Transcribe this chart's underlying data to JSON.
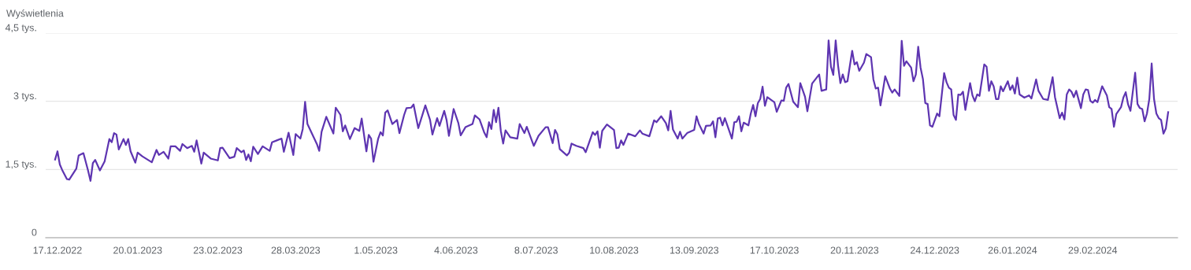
{
  "chart_data": {
    "type": "line",
    "ylabel": "Wyświetlenia",
    "xlim": [
      "2022-12-12",
      "2024-04-05"
    ],
    "ylim": [
      0,
      4.5
    ],
    "xticks": [
      {
        "value": "2022-12-17",
        "label": "17.12.2022"
      },
      {
        "value": "2023-01-20",
        "label": "20.01.2023"
      },
      {
        "value": "2023-02-23",
        "label": "23.02.2023"
      },
      {
        "value": "2023-03-28",
        "label": "28.03.2023"
      },
      {
        "value": "2023-05-01",
        "label": "1.05.2023"
      },
      {
        "value": "2023-06-04",
        "label": "4.06.2023"
      },
      {
        "value": "2023-07-08",
        "label": "8.07.2023"
      },
      {
        "value": "2023-08-10",
        "label": "10.08.2023"
      },
      {
        "value": "2023-09-13",
        "label": "13.09.2023"
      },
      {
        "value": "2023-10-17",
        "label": "17.10.2023"
      },
      {
        "value": "2023-11-20",
        "label": "20.11.2023"
      },
      {
        "value": "2023-12-24",
        "label": "24.12.2023"
      },
      {
        "value": "2024-01-26",
        "label": "26.01.2024"
      },
      {
        "value": "2024-02-29",
        "label": "29.02.2024"
      }
    ],
    "yticks": [
      0,
      {
        "value": 1.5,
        "label": "1,5 tys."
      },
      {
        "value": 3,
        "label": "3 tys."
      },
      {
        "value": 4.5,
        "label": "4,5 tys."
      }
    ],
    "grid": "y",
    "marker": "none",
    "line_style": "solid",
    "series": [
      {
        "color": "#5e35b1",
        "x": [
          "2022-12-16",
          "2022-12-17",
          "2022-12-18",
          "2022-12-19",
          "2022-12-21",
          "2022-12-22",
          "2022-12-25",
          "2022-12-26",
          "2022-12-28",
          "2022-12-30",
          "2022-12-31",
          "2023-01-01",
          "2023-01-02",
          "2023-01-04",
          "2023-01-06",
          "2023-01-08",
          "2023-01-09",
          "2023-01-10",
          "2023-01-11",
          "2023-01-12",
          "2023-01-14",
          "2023-01-15",
          "2023-01-16",
          "2023-01-17",
          "2023-01-19",
          "2023-01-20",
          "2023-01-22",
          "2023-01-26",
          "2023-01-28",
          "2023-01-29",
          "2023-01-31",
          "2023-02-02",
          "2023-02-03",
          "2023-02-05",
          "2023-02-07",
          "2023-02-08",
          "2023-02-10",
          "2023-02-12",
          "2023-02-13",
          "2023-02-14",
          "2023-02-16",
          "2023-02-17",
          "2023-02-20",
          "2023-02-23",
          "2023-02-24",
          "2023-02-25",
          "2023-02-28",
          "2023-03-02",
          "2023-03-03",
          "2023-03-05",
          "2023-03-06",
          "2023-03-07",
          "2023-03-08",
          "2023-03-09",
          "2023-03-10",
          "2023-03-12",
          "2023-03-14",
          "2023-03-17",
          "2023-03-18",
          "2023-03-20",
          "2023-03-22",
          "2023-03-23",
          "2023-03-25",
          "2023-03-27",
          "2023-03-28",
          "2023-03-30",
          "2023-03-31",
          "2023-04-01",
          "2023-04-02",
          "2023-04-06",
          "2023-04-07",
          "2023-04-08",
          "2023-04-10",
          "2023-04-13",
          "2023-04-14",
          "2023-04-16",
          "2023-04-17",
          "2023-04-18",
          "2023-04-20",
          "2023-04-22",
          "2023-04-24",
          "2023-04-25",
          "2023-04-27",
          "2023-04-28",
          "2023-04-29",
          "2023-04-30",
          "2023-05-02",
          "2023-05-03",
          "2023-05-04",
          "2023-05-05",
          "2023-05-06",
          "2023-05-08",
          "2023-05-10",
          "2023-05-11",
          "2023-05-13",
          "2023-05-14",
          "2023-05-16",
          "2023-05-17",
          "2023-05-19",
          "2023-05-22",
          "2023-05-24",
          "2023-05-25",
          "2023-05-27",
          "2023-05-28",
          "2023-05-30",
          "2023-05-31",
          "2023-06-01",
          "2023-06-03",
          "2023-06-05",
          "2023-06-06",
          "2023-06-08",
          "2023-06-11",
          "2023-06-12",
          "2023-06-14",
          "2023-06-16",
          "2023-06-17",
          "2023-06-18",
          "2023-06-19",
          "2023-06-20",
          "2023-06-21",
          "2023-06-22",
          "2023-06-23",
          "2023-06-24",
          "2023-06-25",
          "2023-06-27",
          "2023-06-30",
          "2023-07-01",
          "2023-07-03",
          "2023-07-04",
          "2023-07-07",
          "2023-07-09",
          "2023-07-12",
          "2023-07-13",
          "2023-07-15",
          "2023-07-16",
          "2023-07-17",
          "2023-07-18",
          "2023-07-21",
          "2023-07-22",
          "2023-07-23",
          "2023-07-25",
          "2023-07-28",
          "2023-07-29",
          "2023-08-01",
          "2023-08-02",
          "2023-08-03",
          "2023-08-04",
          "2023-08-05",
          "2023-08-07",
          "2023-08-10",
          "2023-08-11",
          "2023-08-12",
          "2023-08-13",
          "2023-08-14",
          "2023-08-16",
          "2023-08-19",
          "2023-08-21",
          "2023-08-22",
          "2023-08-25",
          "2023-08-27",
          "2023-08-28",
          "2023-08-30",
          "2023-09-01",
          "2023-09-02",
          "2023-09-03",
          "2023-09-04",
          "2023-09-06",
          "2023-09-07",
          "2023-09-08",
          "2023-09-10",
          "2023-09-13",
          "2023-09-14",
          "2023-09-15",
          "2023-09-17",
          "2023-09-18",
          "2023-09-20",
          "2023-09-21",
          "2023-09-22",
          "2023-09-23",
          "2023-09-24",
          "2023-09-25",
          "2023-09-26",
          "2023-09-28",
          "2023-09-29",
          "2023-09-30",
          "2023-10-01",
          "2023-10-02",
          "2023-10-03",
          "2023-10-04",
          "2023-10-06",
          "2023-10-07",
          "2023-10-08",
          "2023-10-09",
          "2023-10-10",
          "2023-10-11",
          "2023-10-12",
          "2023-10-13",
          "2023-10-14",
          "2023-10-17",
          "2023-10-18",
          "2023-10-20",
          "2023-10-21",
          "2023-10-22",
          "2023-10-23",
          "2023-10-25",
          "2023-10-27",
          "2023-10-28",
          "2023-10-30",
          "2023-10-31",
          "2023-11-02",
          "2023-11-05",
          "2023-11-06",
          "2023-11-08",
          "2023-11-09",
          "2023-11-10",
          "2023-11-11",
          "2023-11-12",
          "2023-11-13",
          "2023-11-14",
          "2023-11-15",
          "2023-11-16",
          "2023-11-17",
          "2023-11-19",
          "2023-11-20",
          "2023-11-21",
          "2023-11-22",
          "2023-11-24",
          "2023-11-25",
          "2023-11-27",
          "2023-11-28",
          "2023-11-29",
          "2023-11-30",
          "2023-12-01",
          "2023-12-02",
          "2023-12-03",
          "2023-12-05",
          "2023-12-06",
          "2023-12-07",
          "2023-12-09",
          "2023-12-10",
          "2023-12-11",
          "2023-12-12",
          "2023-12-14",
          "2023-12-15",
          "2023-12-16",
          "2023-12-17",
          "2023-12-18",
          "2023-12-19",
          "2023-12-20",
          "2023-12-21",
          "2023-12-22",
          "2023-12-23",
          "2023-12-25",
          "2023-12-26",
          "2023-12-28",
          "2023-12-29",
          "2023-12-30",
          "2023-12-31",
          "2024-01-01",
          "2024-01-02",
          "2024-01-03",
          "2024-01-04",
          "2024-01-05",
          "2024-01-06",
          "2024-01-08",
          "2024-01-09",
          "2024-01-10",
          "2024-01-11",
          "2024-01-12",
          "2024-01-14",
          "2024-01-15",
          "2024-01-16",
          "2024-01-17",
          "2024-01-18",
          "2024-01-19",
          "2024-01-20",
          "2024-01-21",
          "2024-01-22",
          "2024-01-24",
          "2024-01-25",
          "2024-01-26",
          "2024-01-27",
          "2024-01-28",
          "2024-01-29",
          "2024-01-31",
          "2024-02-02",
          "2024-02-03",
          "2024-02-05",
          "2024-02-06",
          "2024-02-08",
          "2024-02-10",
          "2024-02-12",
          "2024-02-13",
          "2024-02-15",
          "2024-02-16",
          "2024-02-17",
          "2024-02-18",
          "2024-02-19",
          "2024-02-20",
          "2024-02-21",
          "2024-02-22",
          "2024-02-24",
          "2024-02-25",
          "2024-02-26",
          "2024-02-27",
          "2024-02-28",
          "2024-02-29",
          "2024-03-01",
          "2024-03-02",
          "2024-03-04",
          "2024-03-06",
          "2024-03-07",
          "2024-03-08",
          "2024-03-09",
          "2024-03-10",
          "2024-03-12",
          "2024-03-13",
          "2024-03-14",
          "2024-03-15",
          "2024-03-16",
          "2024-03-18",
          "2024-03-19",
          "2024-03-20",
          "2024-03-21",
          "2024-03-22",
          "2024-03-23",
          "2024-03-24",
          "2024-03-25",
          "2024-03-26",
          "2024-03-27",
          "2024-03-28",
          "2024-03-29",
          "2024-03-30",
          "2024-03-31",
          "2024-04-01"
        ],
        "values": [
          1.72,
          1.9,
          1.61,
          1.49,
          1.29,
          1.28,
          1.52,
          1.81,
          1.86,
          1.47,
          1.25,
          1.64,
          1.71,
          1.48,
          1.68,
          2.17,
          2.1,
          2.3,
          2.27,
          1.94,
          2.17,
          2.04,
          2.17,
          1.9,
          1.65,
          1.87,
          1.79,
          1.66,
          1.93,
          1.82,
          1.89,
          1.74,
          2.01,
          2.01,
          1.91,
          2.06,
          1.97,
          2.02,
          1.89,
          2.14,
          1.63,
          1.87,
          1.74,
          1.7,
          1.97,
          1.98,
          1.75,
          1.78,
          1.97,
          1.88,
          1.92,
          1.71,
          1.83,
          1.68,
          2.0,
          1.84,
          2.01,
          1.91,
          2.1,
          2.14,
          2.18,
          1.89,
          2.31,
          1.82,
          2.28,
          2.18,
          2.39,
          2.99,
          2.5,
          2.06,
          1.91,
          2.33,
          2.66,
          2.29,
          2.86,
          2.7,
          2.34,
          2.47,
          2.17,
          2.41,
          2.35,
          2.62,
          1.9,
          2.26,
          2.18,
          1.67,
          2.18,
          2.32,
          2.25,
          2.75,
          2.8,
          2.5,
          2.59,
          2.3,
          2.7,
          2.85,
          2.86,
          2.93,
          2.41,
          2.91,
          2.59,
          2.27,
          2.63,
          2.46,
          2.79,
          2.59,
          2.24,
          2.83,
          2.52,
          2.25,
          2.43,
          2.5,
          2.69,
          2.6,
          2.31,
          2.21,
          2.54,
          2.39,
          2.81,
          2.54,
          2.86,
          2.35,
          2.07,
          2.36,
          2.21,
          2.18,
          2.5,
          2.3,
          2.44,
          2.02,
          2.24,
          2.43,
          2.43,
          2.08,
          2.37,
          2.27,
          1.95,
          1.81,
          1.87,
          2.07,
          2.02,
          1.97,
          1.88,
          2.32,
          2.26,
          2.34,
          1.98,
          2.35,
          2.49,
          2.37,
          1.97,
          1.98,
          2.14,
          2.04,
          2.29,
          2.23,
          2.36,
          2.29,
          2.23,
          2.58,
          2.54,
          2.67,
          2.52,
          2.36,
          2.79,
          2.38,
          2.18,
          2.33,
          2.18,
          2.3,
          2.37,
          2.67,
          2.5,
          2.29,
          2.46,
          2.47,
          2.56,
          2.21,
          2.62,
          2.64,
          2.47,
          2.63,
          2.33,
          2.18,
          2.54,
          2.55,
          2.67,
          2.34,
          2.53,
          2.47,
          2.73,
          2.92,
          2.67,
          2.96,
          3.05,
          3.32,
          2.9,
          3.09,
          2.98,
          2.77,
          3.02,
          3.01,
          3.3,
          3.38,
          2.99,
          2.87,
          3.4,
          3.1,
          2.78,
          3.39,
          3.59,
          3.23,
          3.26,
          4.34,
          3.76,
          3.58,
          4.34,
          3.79,
          3.4,
          3.59,
          3.42,
          3.44,
          4.11,
          3.81,
          3.86,
          3.67,
          3.85,
          4.04,
          3.97,
          3.48,
          3.28,
          3.3,
          2.91,
          3.22,
          3.55,
          3.28,
          3.19,
          3.26,
          3.12,
          4.33,
          3.78,
          3.88,
          3.74,
          3.44,
          3.59,
          4.2,
          3.74,
          3.49,
          2.96,
          2.94,
          2.47,
          2.44,
          2.73,
          2.67,
          3.62,
          3.42,
          3.3,
          3.26,
          2.7,
          2.59,
          3.15,
          3.14,
          3.21,
          2.81,
          3.4,
          3.13,
          3.0,
          3.15,
          3.12,
          3.81,
          3.76,
          3.23,
          3.44,
          3.33,
          3.05,
          3.05,
          3.33,
          3.22,
          3.44,
          3.25,
          3.35,
          3.17,
          3.52,
          3.15,
          3.08,
          3.13,
          3.06,
          3.48,
          3.23,
          3.05,
          3.03,
          3.53,
          3.09,
          2.63,
          2.75,
          2.6,
          3.15,
          3.26,
          3.21,
          3.09,
          3.23,
          2.85,
          3.15,
          3.26,
          3.25,
          3.01,
          2.97,
          3.03,
          2.98,
          3.33,
          3.13,
          2.87,
          2.83,
          2.44,
          2.72,
          2.87,
          3.08,
          3.2,
          2.93,
          2.79,
          3.63,
          2.94,
          2.85,
          2.83,
          2.56,
          2.73,
          3.05,
          3.83,
          3.05,
          2.73,
          2.63,
          2.59,
          2.29,
          2.4,
          2.76
        ]
      }
    ]
  }
}
